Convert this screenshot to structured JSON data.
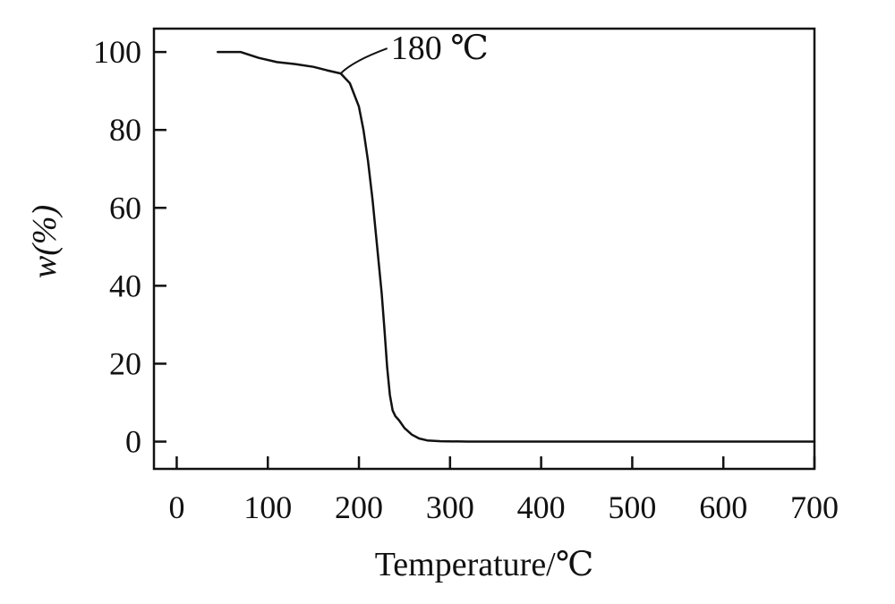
{
  "chart_data": {
    "type": "line",
    "title": "",
    "xlabel": "Temperature/℃",
    "ylabel": "w(%)",
    "xlim": [
      -25,
      700
    ],
    "ylim": [
      -7,
      106
    ],
    "xticks": [
      0,
      100,
      200,
      300,
      400,
      500,
      600,
      700
    ],
    "yticks": [
      0,
      20,
      40,
      60,
      80,
      100
    ],
    "grid": false,
    "legend": "none",
    "series": [
      {
        "x": [
          45,
          70,
          90,
          110,
          130,
          150,
          165,
          180,
          190,
          200,
          205,
          210,
          215,
          220,
          225,
          228,
          231,
          234,
          237,
          240,
          244,
          250,
          258,
          266,
          275,
          290,
          320,
          400,
          500,
          600,
          700
        ],
        "y": [
          100,
          100,
          98.5,
          97.4,
          96.9,
          96.2,
          95.3,
          94.5,
          92,
          86,
          80,
          72,
          62,
          50,
          38,
          29,
          19,
          12,
          8,
          6.5,
          5.5,
          3.5,
          1.8,
          0.8,
          0.3,
          0.1,
          0,
          0,
          0,
          0,
          0
        ]
      }
    ],
    "annotations": [
      {
        "text": "180 ℃",
        "x": 180,
        "y": 94.5
      }
    ]
  }
}
